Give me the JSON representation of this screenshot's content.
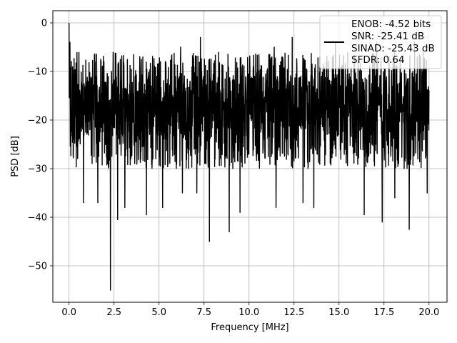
{
  "chart_data": {
    "type": "line",
    "title": "",
    "xlabel": "Frequency [MHz]",
    "ylabel": "PSD [dB]",
    "xlim": [
      -0.9,
      21.0
    ],
    "ylim": [
      -57.5,
      2.5
    ],
    "xticks": [
      0.0,
      2.5,
      5.0,
      7.5,
      10.0,
      12.5,
      15.0,
      17.5,
      20.0
    ],
    "xtick_labels": [
      "0.0",
      "2.5",
      "5.0",
      "7.5",
      "10.0",
      "12.5",
      "15.0",
      "17.5",
      "20.0"
    ],
    "yticks": [
      0,
      -10,
      -20,
      -30,
      -40,
      -50
    ],
    "ytick_labels": [
      "0",
      "−10",
      "−20",
      "−30",
      "−40",
      "−50"
    ],
    "grid": true,
    "legend_position": "top-right",
    "legend_lines": [
      "ENOB: -4.52 bits",
      "SNR: -25.41 dB",
      "SINAD: -25.43 dB",
      "SFDR: 0.64"
    ],
    "series_color": "#000000",
    "series": [
      {
        "x_start": 0.0,
        "x_end": 20.0,
        "n_points": 2001,
        "mean_level": -17.0,
        "fluctuation_min": -30.0,
        "fluctuation_max": -6.0,
        "peaks": [
          {
            "x": 0.0,
            "y": 0.0
          },
          {
            "x": 0.05,
            "y": -4.0
          },
          {
            "x": 1.45,
            "y": -8.0
          },
          {
            "x": 4.3,
            "y": -6.0
          },
          {
            "x": 6.2,
            "y": -5.0
          },
          {
            "x": 7.3,
            "y": -3.0
          },
          {
            "x": 8.9,
            "y": -4.0
          },
          {
            "x": 11.4,
            "y": -5.0
          },
          {
            "x": 12.4,
            "y": -3.0
          },
          {
            "x": 14.8,
            "y": -4.0
          },
          {
            "x": 17.1,
            "y": -4.0
          },
          {
            "x": 19.2,
            "y": -4.0
          }
        ],
        "dips": [
          {
            "x": 0.8,
            "y": -37.0
          },
          {
            "x": 1.6,
            "y": -37.0
          },
          {
            "x": 2.3,
            "y": -55.0
          },
          {
            "x": 2.7,
            "y": -40.5
          },
          {
            "x": 3.1,
            "y": -38.0
          },
          {
            "x": 4.3,
            "y": -39.5
          },
          {
            "x": 5.2,
            "y": -38.0
          },
          {
            "x": 6.3,
            "y": -35.0
          },
          {
            "x": 7.1,
            "y": -35.0
          },
          {
            "x": 7.8,
            "y": -45.0
          },
          {
            "x": 8.9,
            "y": -43.0
          },
          {
            "x": 9.5,
            "y": -39.0
          },
          {
            "x": 11.5,
            "y": -38.0
          },
          {
            "x": 13.0,
            "y": -37.0
          },
          {
            "x": 13.6,
            "y": -38.0
          },
          {
            "x": 16.4,
            "y": -39.5
          },
          {
            "x": 17.4,
            "y": -41.0
          },
          {
            "x": 18.1,
            "y": -36.0
          },
          {
            "x": 18.9,
            "y": -42.5
          },
          {
            "x": 19.9,
            "y": -35.0
          }
        ]
      }
    ]
  }
}
